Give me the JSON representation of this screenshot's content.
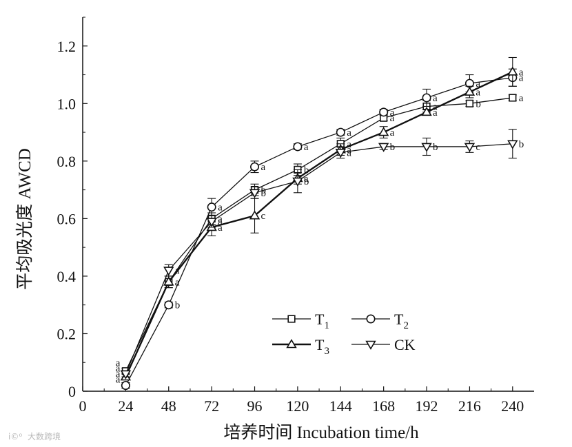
{
  "chart_data": {
    "type": "line",
    "xlabel": "培养时间 Incubation time/h",
    "ylabel": "平均吸光度 AWCD",
    "xlim": [
      0,
      252
    ],
    "ylim": [
      0,
      1.3
    ],
    "x_ticks": [
      "0",
      "24",
      "48",
      "72",
      "96",
      "120",
      "144",
      "168",
      "192",
      "216",
      "240"
    ],
    "y_ticks": [
      "0",
      "0.2",
      "0.4",
      "0.6",
      "0.8",
      "1.0",
      "1.2"
    ],
    "legend_position": "lower-right",
    "x": [
      24,
      48,
      72,
      96,
      120,
      144,
      168,
      192,
      216,
      240
    ],
    "series": [
      {
        "name": "T",
        "subscript": "1",
        "marker": "square",
        "line_width": "thin",
        "values": [
          0.07,
          0.38,
          0.6,
          0.7,
          0.77,
          0.86,
          0.95,
          0.99,
          1.0,
          1.02
        ],
        "errors": [
          0.01,
          0.02,
          0.02,
          0.02,
          0.02,
          0.02,
          0.01,
          0.02,
          0.01,
          0.01
        ],
        "labels": [
          "a",
          "a",
          "a",
          "b",
          "b",
          "a",
          "a",
          "a",
          "b",
          "a"
        ]
      },
      {
        "name": "T",
        "subscript": "2",
        "marker": "circle",
        "line_width": "thin",
        "values": [
          0.02,
          0.3,
          0.64,
          0.78,
          0.85,
          0.9,
          0.97,
          1.02,
          1.07,
          1.09
        ],
        "errors": [
          0.01,
          0.01,
          0.03,
          0.02,
          0.01,
          0.01,
          0.01,
          0.03,
          0.03,
          0.03
        ],
        "labels": [
          "a",
          "b",
          "a",
          "a",
          "a",
          "a",
          "a",
          "a",
          "a",
          "a"
        ]
      },
      {
        "name": "T",
        "subscript": "3",
        "marker": "triangle-up",
        "line_width": "thick",
        "values": [
          0.05,
          0.38,
          0.57,
          0.61,
          0.74,
          0.84,
          0.9,
          0.97,
          1.04,
          1.11
        ],
        "errors": [
          0.01,
          0.02,
          0.03,
          0.06,
          0.02,
          0.02,
          0.02,
          0.01,
          0.02,
          0.05
        ],
        "labels": [
          "a",
          "a",
          "a",
          "c",
          "a",
          "a",
          "a",
          "a",
          "a",
          "a"
        ]
      },
      {
        "name": "CK",
        "subscript": "",
        "marker": "triangle-down",
        "line_width": "thin",
        "values": [
          0.06,
          0.42,
          0.59,
          0.69,
          0.73,
          0.83,
          0.85,
          0.85,
          0.85,
          0.86
        ],
        "errors": [
          0.01,
          0.02,
          0.02,
          0.02,
          0.04,
          0.02,
          0.01,
          0.03,
          0.02,
          0.05
        ],
        "labels": [
          "a",
          "a",
          "a",
          "b",
          "b",
          "a",
          "b",
          "b",
          "c",
          "b"
        ]
      }
    ]
  },
  "watermark": "大数跨境"
}
